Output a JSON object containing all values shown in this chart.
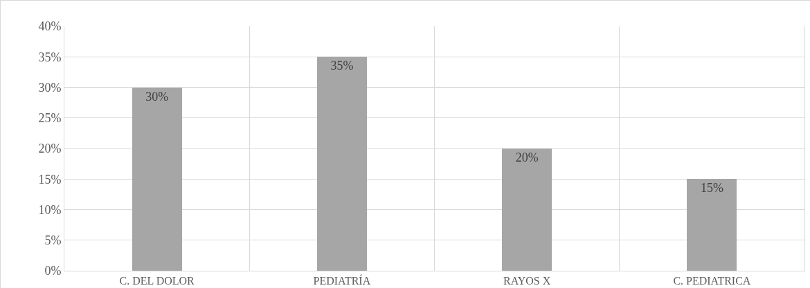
{
  "chart_data": {
    "type": "bar",
    "categories": [
      "C. DEL DOLOR",
      "PEDIATRÍA",
      "RAYOS X",
      "C. PEDIATRICA"
    ],
    "values": [
      30,
      35,
      20,
      15
    ],
    "value_labels": [
      "30%",
      "35%",
      "20%",
      "15%"
    ],
    "color": "#a6a6a6",
    "ylim": [
      0,
      40
    ],
    "yticks": [
      {
        "value": 0,
        "label": "0%"
      },
      {
        "value": 5,
        "label": "5%"
      },
      {
        "value": 10,
        "label": "10%"
      },
      {
        "value": 15,
        "label": "15%"
      },
      {
        "value": 20,
        "label": "20%"
      },
      {
        "value": 25,
        "label": "25%"
      },
      {
        "value": 30,
        "label": "30%"
      },
      {
        "value": 35,
        "label": "35%"
      },
      {
        "value": 40,
        "label": "40%"
      }
    ],
    "grid": true
  }
}
